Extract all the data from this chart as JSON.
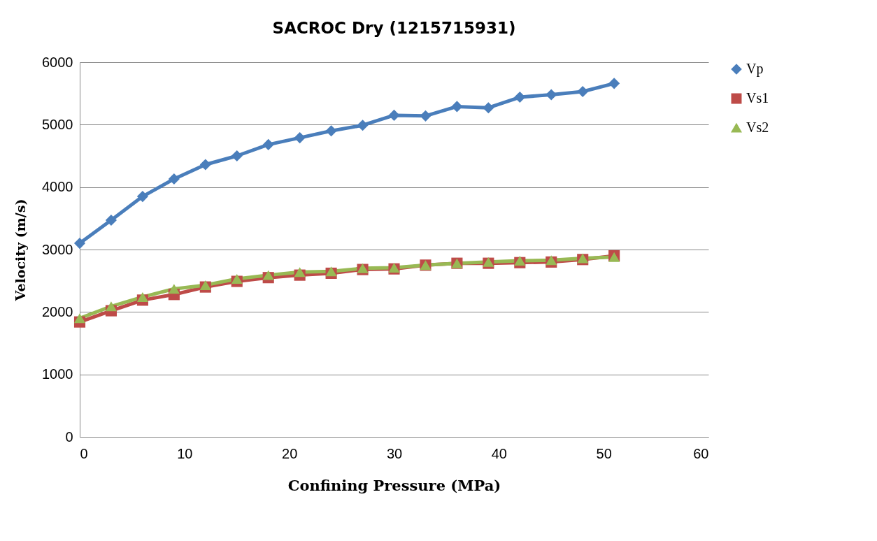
{
  "chart_data": {
    "type": "line",
    "title": "SACROC  Dry (1215715931)",
    "xlabel": "Confining Pressure (MPa)",
    "ylabel": "Velocity (m/s)",
    "x": [
      0,
      3,
      6,
      9,
      12,
      15,
      18,
      21,
      24,
      27,
      30,
      33,
      36,
      39,
      42,
      45,
      48,
      51
    ],
    "series": [
      {
        "name": "Vp",
        "color": "#4a7ebb",
        "marker": "diamond",
        "values": [
          3100,
          3470,
          3850,
          4130,
          4360,
          4500,
          4680,
          4790,
          4900,
          4990,
          5150,
          5140,
          5290,
          5270,
          5440,
          5480,
          5530,
          5660
        ]
      },
      {
        "name": "Vs1",
        "color": "#be4b48",
        "marker": "square",
        "values": [
          1840,
          2020,
          2190,
          2280,
          2400,
          2490,
          2550,
          2590,
          2620,
          2680,
          2690,
          2750,
          2780,
          2780,
          2790,
          2800,
          2840,
          2900
        ]
      },
      {
        "name": "Vs2",
        "color": "#98b954",
        "marker": "triangle",
        "values": [
          1900,
          2090,
          2240,
          2370,
          2430,
          2530,
          2590,
          2640,
          2650,
          2700,
          2710,
          2750,
          2780,
          2800,
          2820,
          2830,
          2860,
          2880
        ]
      }
    ],
    "xlim": [
      0,
      60
    ],
    "xticks": [
      0,
      10,
      20,
      30,
      40,
      50,
      60
    ],
    "ylim": [
      0,
      6000
    ],
    "yticks": [
      0,
      1000,
      2000,
      3000,
      4000,
      5000,
      6000
    ],
    "grid": "y",
    "legend": "right",
    "line_style": "solid"
  }
}
